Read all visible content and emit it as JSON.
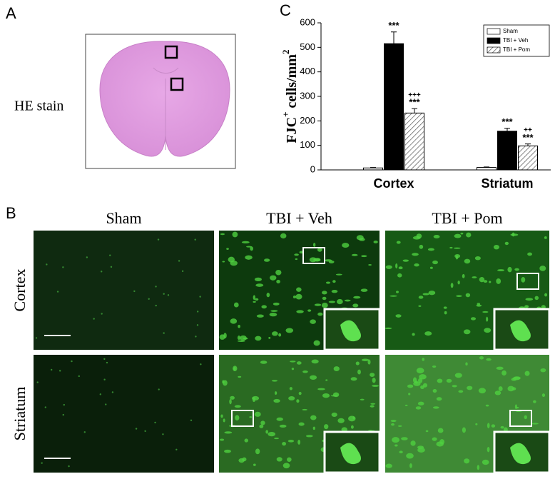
{
  "panels": {
    "a": {
      "label": "A",
      "caption": "HE stain"
    },
    "b": {
      "label": "B",
      "columns": [
        "Sham",
        "TBI + Veh",
        "TBI + Pom"
      ],
      "rows": [
        "Cortex",
        "Striatum"
      ]
    },
    "c": {
      "label": "C"
    }
  },
  "chart_data": {
    "type": "bar",
    "y_label": [
      "FJC",
      "+",
      " cells/mm",
      "2"
    ],
    "categories": [
      "Cortex",
      "Striatum"
    ],
    "series": [
      {
        "name": "Sham",
        "color": "#ffffff",
        "values": [
          8,
          10
        ],
        "errors": [
          2,
          2
        ]
      },
      {
        "name": "TBI + Veh",
        "color": "#000000",
        "values": [
          515,
          158
        ],
        "errors": [
          48,
          12
        ],
        "labels": [
          [
            "***"
          ],
          [
            "***"
          ]
        ]
      },
      {
        "name": "TBI + Pom",
        "color": "#ffffff",
        "pattern": "hatch",
        "values": [
          232,
          98
        ],
        "errors": [
          18,
          8
        ],
        "labels": [
          [
            "+++",
            "***"
          ],
          [
            "++",
            "***"
          ]
        ]
      }
    ],
    "ylim": [
      0,
      600
    ],
    "yticks": [
      0,
      100,
      200,
      300,
      400,
      500,
      600
    ],
    "grid": false,
    "legend": "top-right"
  }
}
